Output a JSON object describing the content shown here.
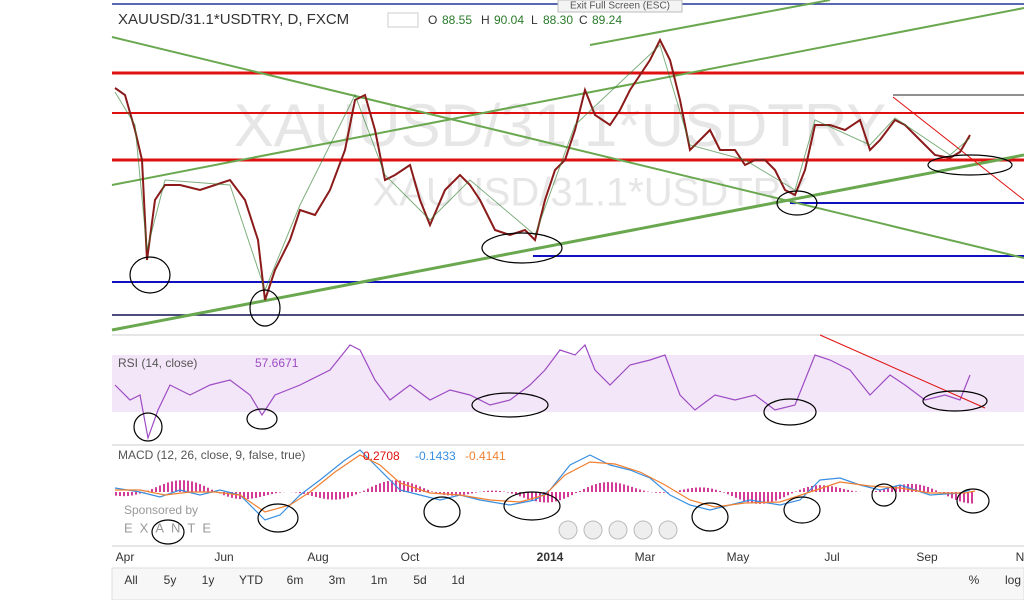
{
  "header": {
    "symbol": "XAUUSD/31.1*USDTRY, D, FXCM",
    "o_label": "O",
    "o": "88.55",
    "h_label": "H",
    "h": "90.04",
    "l_label": "L",
    "l": "88.30",
    "c_label": "C",
    "c": "89.24",
    "exit": "Exit Full Screen (ESC)"
  },
  "watermark": {
    "big": "XAUUSD/31.1*USDTRY",
    "small": "XAUUSD/31.1*USDTRY"
  },
  "rsi": {
    "label": "RSI (14, close)",
    "value": "57.6671"
  },
  "macd": {
    "label": "MACD (12, 26, close, 9, false, true)",
    "hist": "0.2708",
    "macd": "-0.1433",
    "signal": "-0.4141"
  },
  "sponsor": {
    "line1": "Sponsored by",
    "line2": "EXANTE"
  },
  "x_axis": [
    "Apr",
    "Jun",
    "Aug",
    "Oct",
    "2014",
    "Mar",
    "May",
    "Jul",
    "Sep",
    "N"
  ],
  "ranges": [
    "All",
    "5y",
    "1y",
    "YTD",
    "6m",
    "3m",
    "1m",
    "5d",
    "1d"
  ],
  "right_buttons": [
    "%",
    "log"
  ]
}
